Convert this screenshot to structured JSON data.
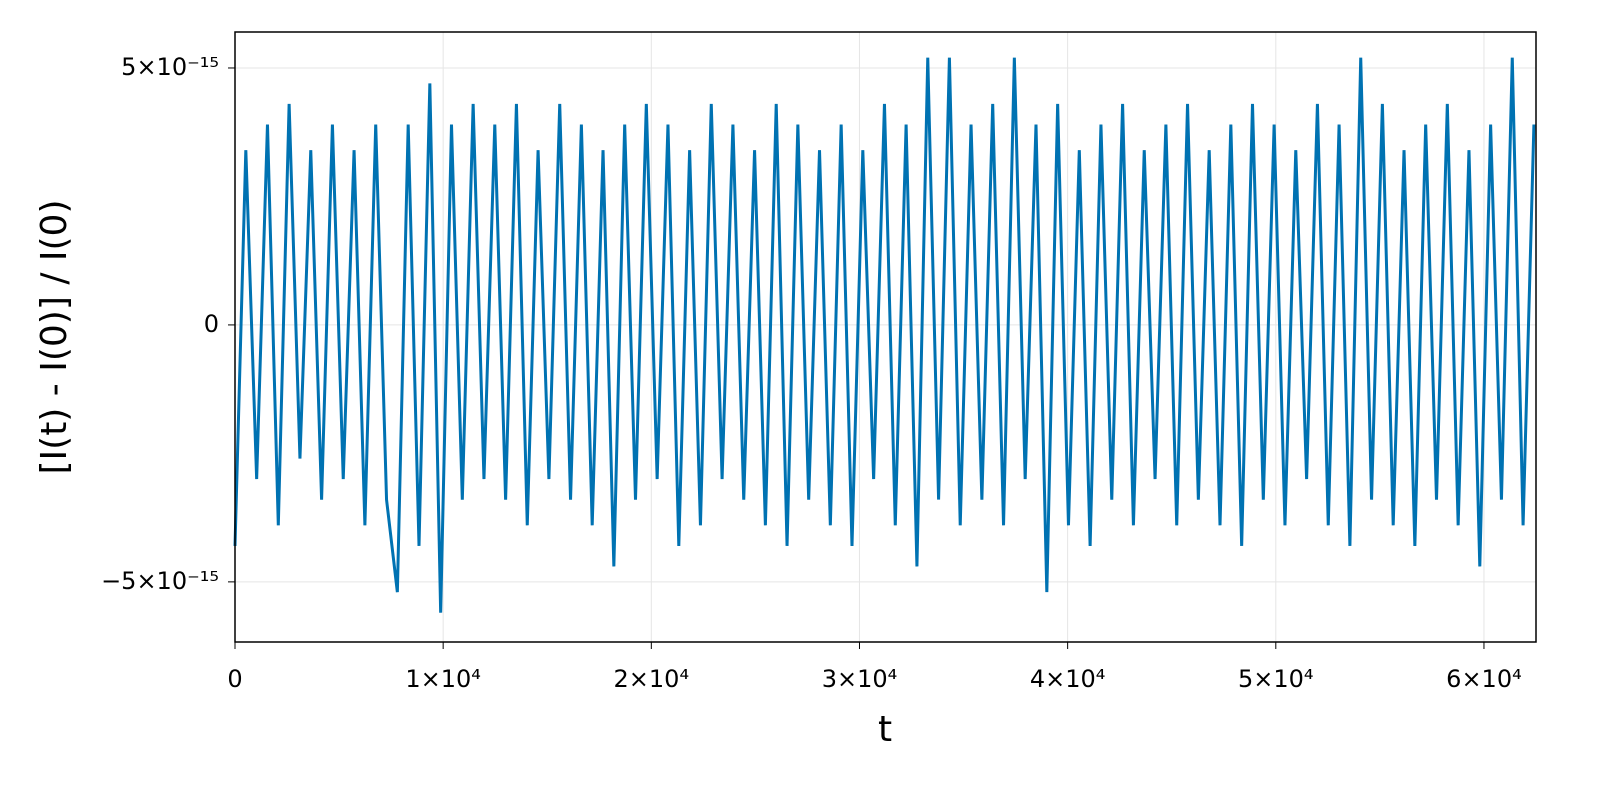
{
  "chart_data": {
    "type": "line",
    "xlabel": "t",
    "ylabel": "[I(t) - I(0)] / I(0)",
    "color": "#0072b2",
    "grid": true,
    "xlim": [
      0,
      62500
    ],
    "ylim": [
      -6.17e-15,
      5.7e-15
    ],
    "xticks": [
      0,
      {
        "value": 10000,
        "label": "1×10⁴"
      },
      {
        "value": 20000,
        "label": "2×10⁴"
      },
      {
        "value": 30000,
        "label": "3×10⁴"
      },
      {
        "value": 40000,
        "label": "4×10⁴"
      },
      {
        "value": 50000,
        "label": "5×10⁴"
      },
      {
        "value": 60000,
        "label": "6×10⁴"
      }
    ],
    "yticks": [
      {
        "value": -5e-15,
        "label": "−5×10⁻¹⁵"
      },
      0,
      {
        "value": 5e-15,
        "label": "5×10⁻¹⁵"
      }
    ],
    "x": [
      0,
      520,
      1040,
      1560,
      2080,
      2600,
      3120,
      3640,
      4160,
      4680,
      5200,
      5720,
      6240,
      6760,
      7280,
      7800,
      8320,
      8840,
      9360,
      9880,
      10400,
      10920,
      11440,
      11960,
      12480,
      13000,
      13520,
      14040,
      14560,
      15080,
      15600,
      16120,
      16640,
      17160,
      17680,
      18200,
      18720,
      19240,
      19760,
      20280,
      20800,
      21320,
      21840,
      22360,
      22880,
      23400,
      23920,
      24440,
      24960,
      25480,
      26000,
      26520,
      27040,
      27560,
      28080,
      28600,
      29120,
      29640,
      30160,
      30680,
      31200,
      31720,
      32240,
      32760,
      33280,
      33800,
      34320,
      34840,
      35360,
      35880,
      36400,
      36920,
      37440,
      37960,
      38480,
      39000,
      39520,
      40040,
      40560,
      41080,
      41600,
      42120,
      42640,
      43160,
      43680,
      44200,
      44720,
      45240,
      45760,
      46280,
      46800,
      47320,
      47840,
      48360,
      48880,
      49400,
      49920,
      50440,
      50960,
      51480,
      52000,
      52520,
      53040,
      53560,
      54080,
      54600,
      55120,
      55640,
      56160,
      56680,
      57200,
      57720,
      58240,
      58760,
      59280,
      59800,
      60320,
      60840,
      61360,
      61880,
      62400
    ],
    "values": [
      -4.3e-15,
      3.4e-15,
      -3e-15,
      3.9e-15,
      -3.9e-15,
      4.3e-15,
      -2.6e-15,
      3.4e-15,
      -3.4e-15,
      3.9e-15,
      -3e-15,
      3.4e-15,
      -3.9e-15,
      3.9e-15,
      -3.4e-15,
      -5.2e-15,
      3.9e-15,
      -4.3e-15,
      4.7e-15,
      -5.6e-15,
      3.9e-15,
      -3.4e-15,
      4.3e-15,
      -3e-15,
      3.9e-15,
      -3.4e-15,
      4.3e-15,
      -3.9e-15,
      3.4e-15,
      -3e-15,
      4.3e-15,
      -3.4e-15,
      3.9e-15,
      -3.9e-15,
      3.4e-15,
      -4.7e-15,
      3.9e-15,
      -3.4e-15,
      4.3e-15,
      -3e-15,
      3.9e-15,
      -4.3e-15,
      3.4e-15,
      -3.9e-15,
      4.3e-15,
      -3e-15,
      3.9e-15,
      -3.4e-15,
      3.4e-15,
      -3.9e-15,
      4.3e-15,
      -4.3e-15,
      3.9e-15,
      -3.4e-15,
      3.4e-15,
      -3.9e-15,
      3.9e-15,
      -4.3e-15,
      3.4e-15,
      -3e-15,
      4.3e-15,
      -3.9e-15,
      3.9e-15,
      -4.7e-15,
      5.2e-15,
      -3.4e-15,
      5.2e-15,
      -3.9e-15,
      3.9e-15,
      -3.4e-15,
      4.3e-15,
      -3.9e-15,
      5.2e-15,
      -3e-15,
      3.9e-15,
      -5.2e-15,
      4.3e-15,
      -3.9e-15,
      3.4e-15,
      -4.3e-15,
      3.9e-15,
      -3.4e-15,
      4.3e-15,
      -3.9e-15,
      3.4e-15,
      -3e-15,
      3.9e-15,
      -3.9e-15,
      4.3e-15,
      -3.4e-15,
      3.4e-15,
      -3.9e-15,
      3.9e-15,
      -4.3e-15,
      4.3e-15,
      -3.4e-15,
      3.9e-15,
      -3.9e-15,
      3.4e-15,
      -3e-15,
      4.3e-15,
      -3.9e-15,
      3.9e-15,
      -4.3e-15,
      5.2e-15,
      -3.4e-15,
      4.3e-15,
      -3.9e-15,
      3.4e-15,
      -4.3e-15,
      3.9e-15,
      -3.4e-15,
      4.3e-15,
      -3.9e-15,
      3.4e-15,
      -4.7e-15,
      3.9e-15,
      -3.4e-15,
      5.2e-15,
      -3.9e-15,
      3.9e-15
    ]
  }
}
